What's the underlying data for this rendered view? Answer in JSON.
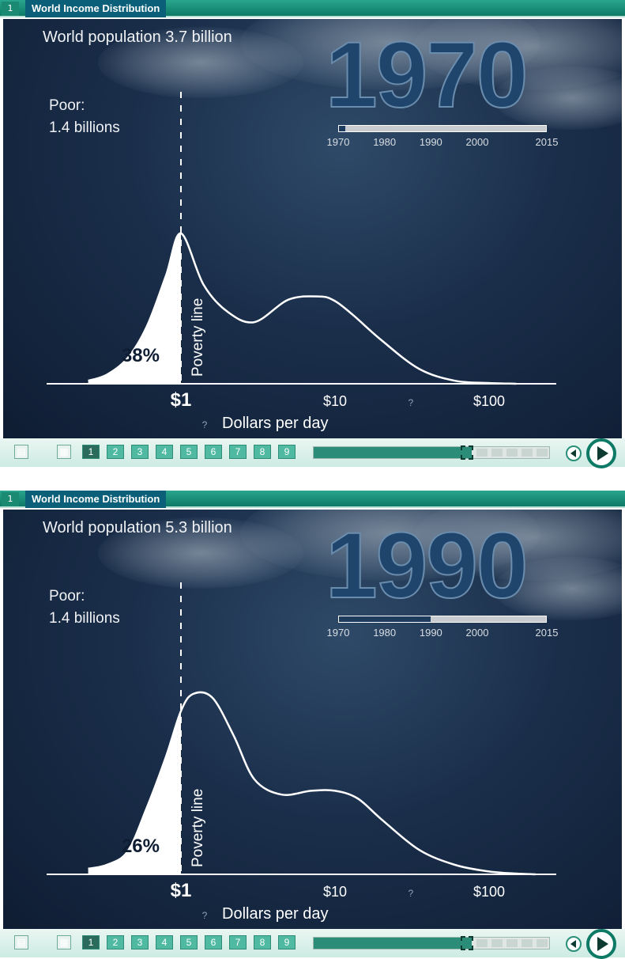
{
  "chart_data": [
    {
      "type": "area",
      "panel_title": "World Income Distribution",
      "panel_number": "1",
      "year": "1970",
      "population_text": "World population 3.7 billion",
      "poor_label": "Poor:",
      "poor_value": "1.4 billions",
      "below_poverty_pct": "38%",
      "poverty_line_label": "Poverty line",
      "x_axis_label": "Dollars per day",
      "x_unknown_marker": "?",
      "x_tick_labels": [
        "$1",
        "$10",
        "?",
        "$100"
      ],
      "x_scale": "log",
      "x": [
        0.25,
        0.33,
        0.45,
        0.6,
        0.8,
        1,
        1.4,
        2,
        3,
        5,
        8,
        10,
        13,
        20,
        35,
        60,
        100,
        150
      ],
      "density": [
        0.02,
        0.06,
        0.17,
        0.38,
        0.72,
        1.0,
        0.66,
        0.48,
        0.41,
        0.56,
        0.58,
        0.55,
        0.46,
        0.29,
        0.1,
        0.02,
        0.005,
        0.0
      ],
      "timeline": {
        "labels": [
          "1970",
          "1980",
          "1990",
          "2000",
          "2015"
        ],
        "current": 1970,
        "track_color": "#c8ccd0",
        "fill_color": "#1d3c5e"
      }
    },
    {
      "type": "area",
      "panel_title": "World Income Distribution",
      "panel_number": "1",
      "year": "1990",
      "population_text": "World population 5.3 billion",
      "poor_label": "Poor:",
      "poor_value": "1.4 billions",
      "below_poverty_pct": "26%",
      "poverty_line_label": "Poverty line",
      "x_axis_label": "Dollars per day",
      "x_unknown_marker": "?",
      "x_tick_labels": [
        "$1",
        "$10",
        "?",
        "$100"
      ],
      "x_scale": "log",
      "x": [
        0.25,
        0.33,
        0.45,
        0.6,
        0.8,
        1,
        1.2,
        1.6,
        2.2,
        3,
        4.5,
        7,
        10,
        14,
        20,
        35,
        60,
        100,
        150,
        200
      ],
      "density": [
        0.03,
        0.05,
        0.12,
        0.35,
        0.62,
        0.86,
        0.95,
        0.93,
        0.73,
        0.5,
        0.42,
        0.44,
        0.44,
        0.4,
        0.29,
        0.13,
        0.05,
        0.015,
        0.004,
        0.0
      ],
      "timeline": {
        "labels": [
          "1970",
          "1980",
          "1990",
          "2000",
          "2015"
        ],
        "current": 1990,
        "track_color": "#c8ccd0",
        "fill_color": "#1d3c5e"
      }
    }
  ],
  "controls": {
    "page_buttons": [
      "1",
      "2",
      "3",
      "4",
      "5",
      "6",
      "7",
      "8",
      "9"
    ],
    "active_page": "1"
  },
  "colors": {
    "background": "#1a2e4a",
    "curve": "#ffffff",
    "accent": "#0d7a66"
  }
}
